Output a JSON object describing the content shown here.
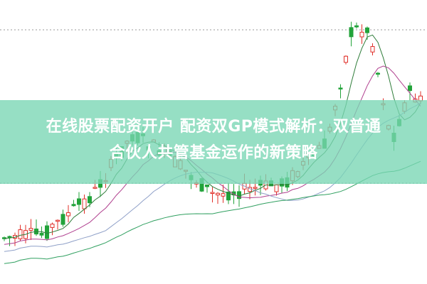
{
  "headline": {
    "line1": "在线股票配资开户 配资双GP模式解析：双普通",
    "line2": "合伙人共管基金运作的新策略"
  },
  "colors": {
    "up": "#e0302a",
    "down": "#22a33a",
    "band": "#78d6b4",
    "ma_short": "#2f7d3a",
    "ma_mid": "#b0408f",
    "ma_long": "#8fa0c8",
    "ma_longest": "#30a060"
  }
}
